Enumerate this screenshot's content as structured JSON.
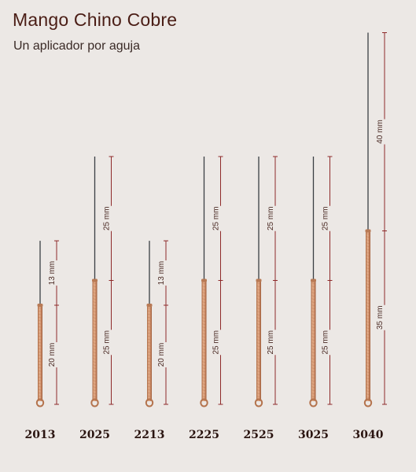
{
  "header": {
    "title": "Mango Chino Cobre",
    "subtitle": "Un aplicador por aguja"
  },
  "unit": "mm",
  "colors": {
    "title": "#4a1d15",
    "dimension_line": "#8e2a2a",
    "copper": "#c98a66",
    "needle": "#3a3f44"
  },
  "needles": [
    {
      "code": "2013",
      "handle_mm": 20,
      "needle_mm": 13,
      "handle_label": "20 mm",
      "needle_label": "13 mm"
    },
    {
      "code": "2025",
      "handle_mm": 25,
      "needle_mm": 25,
      "handle_label": "25 mm",
      "needle_label": "25 mm"
    },
    {
      "code": "2213",
      "handle_mm": 20,
      "needle_mm": 13,
      "handle_label": "20 mm",
      "needle_label": "13 mm"
    },
    {
      "code": "2225",
      "handle_mm": 25,
      "needle_mm": 25,
      "handle_label": "25 mm",
      "needle_label": "25 mm"
    },
    {
      "code": "2525",
      "handle_mm": 25,
      "needle_mm": 25,
      "handle_label": "25 mm",
      "needle_label": "25 mm"
    },
    {
      "code": "3025",
      "handle_mm": 25,
      "needle_mm": 25,
      "handle_label": "25 mm",
      "needle_label": "25 mm"
    },
    {
      "code": "3040",
      "handle_mm": 35,
      "needle_mm": 40,
      "handle_label": "35 mm",
      "needle_label": "40 mm"
    }
  ]
}
